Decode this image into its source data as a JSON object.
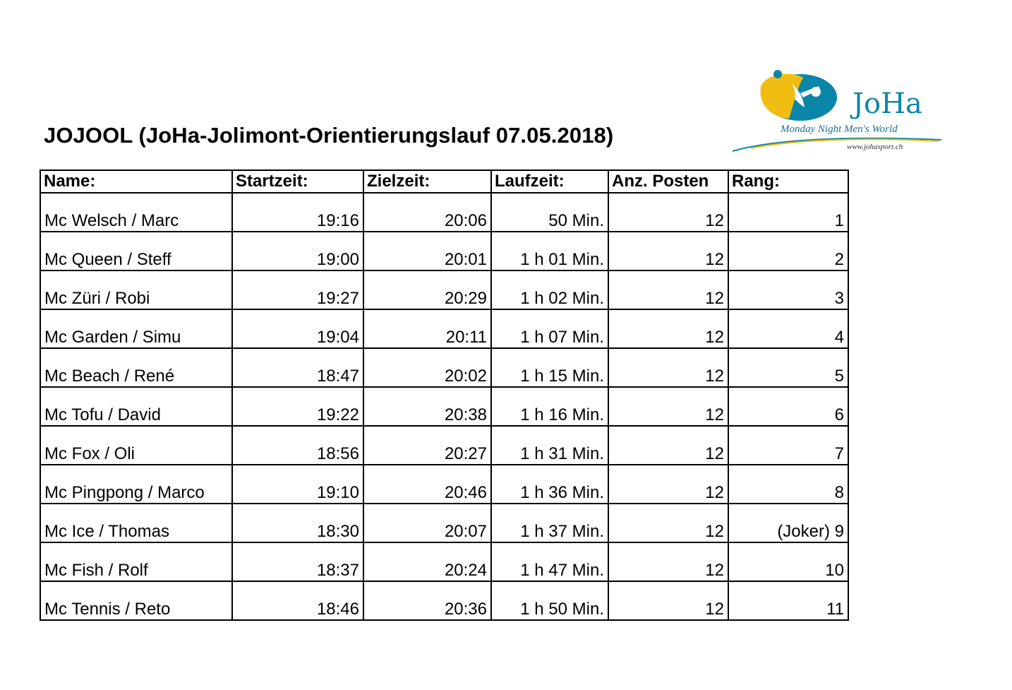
{
  "document": {
    "title": "JOJOOL (JoHa-Jolimont-Orientierungslauf 07.05.2018)"
  },
  "logo": {
    "wordmark": "JoHa",
    "tagline": "Monday Night Men's World",
    "url": "www.johasport.ch",
    "colors": {
      "yellow": "#f2bd12",
      "blue": "#0a87a8",
      "text": "#1a6e9e"
    }
  },
  "table": {
    "headers": {
      "name": "Name:",
      "start": "Startzeit:",
      "finish": "Zielzeit:",
      "runtime": "Laufzeit:",
      "posts": "Anz. Posten",
      "rank": "Rang:"
    },
    "rows": [
      {
        "name": "Mc Welsch / Marc",
        "start": "19:16",
        "finish": "20:06",
        "runtime": "50 Min.",
        "posts": "12",
        "rank": "1"
      },
      {
        "name": "Mc Queen / Steff",
        "start": "19:00",
        "finish": "20:01",
        "runtime": "1 h 01 Min.",
        "posts": "12",
        "rank": "2"
      },
      {
        "name": "Mc Züri / Robi",
        "start": "19:27",
        "finish": "20:29",
        "runtime": "1 h 02 Min.",
        "posts": "12",
        "rank": "3"
      },
      {
        "name": "Mc Garden / Simu",
        "start": "19:04",
        "finish": "20:11",
        "runtime": "1 h 07 Min.",
        "posts": "12",
        "rank": "4"
      },
      {
        "name": "Mc Beach / René",
        "start": "18:47",
        "finish": "20:02",
        "runtime": "1 h 15 Min.",
        "posts": "12",
        "rank": "5"
      },
      {
        "name": "Mc Tofu / David",
        "start": "19:22",
        "finish": "20:38",
        "runtime": "1 h 16 Min.",
        "posts": "12",
        "rank": "6"
      },
      {
        "name": "Mc Fox / Oli",
        "start": "18:56",
        "finish": "20:27",
        "runtime": "1 h 31 Min.",
        "posts": "12",
        "rank": "7"
      },
      {
        "name": "Mc Pingpong / Marco",
        "start": "19:10",
        "finish": "20:46",
        "runtime": "1 h 36 Min.",
        "posts": "12",
        "rank": "8"
      },
      {
        "name": "Mc Ice / Thomas",
        "start": "18:30",
        "finish": "20:07",
        "runtime": "1 h 37 Min.",
        "posts": "12",
        "rank": "(Joker) 9"
      },
      {
        "name": "Mc Fish / Rolf",
        "start": "18:37",
        "finish": "20:24",
        "runtime": "1 h 47 Min.",
        "posts": "12",
        "rank": "10"
      },
      {
        "name": "Mc Tennis / Reto",
        "start": "18:46",
        "finish": "20:36",
        "runtime": "1 h 50 Min.",
        "posts": "12",
        "rank": "11"
      }
    ]
  }
}
